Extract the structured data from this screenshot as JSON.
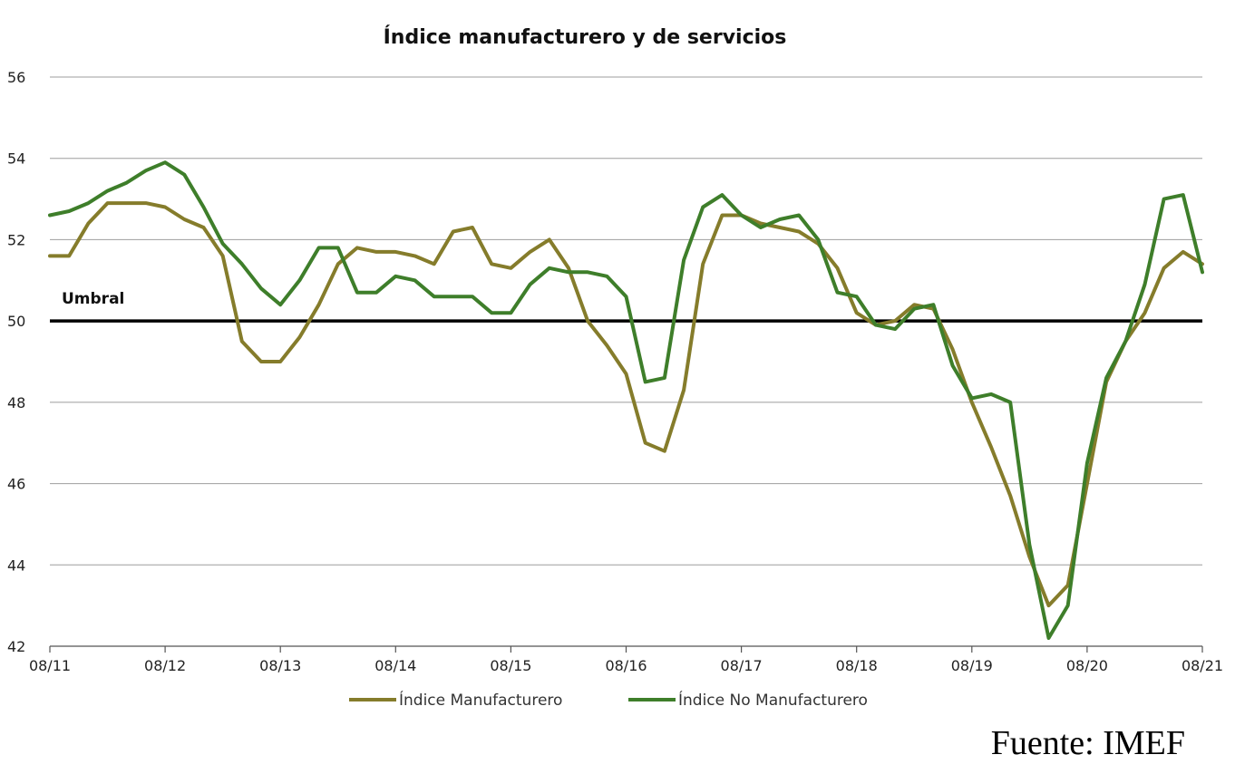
{
  "chart_data": {
    "type": "line",
    "title": "Índice manufacturero y de servicios",
    "ylim": [
      42,
      56
    ],
    "yticks": [
      42,
      44,
      46,
      48,
      50,
      52,
      54,
      56
    ],
    "xtick_labels": [
      "08/11",
      "08/12",
      "08/13",
      "08/14",
      "08/15",
      "08/16",
      "08/17",
      "08/18",
      "08/19",
      "08/20",
      "08/21"
    ],
    "grid": true,
    "legend_position": "bottom",
    "reference_line": {
      "value": 50,
      "label": "Umbral",
      "color": "#000000"
    },
    "series": [
      {
        "name": "Índice Manufacturero",
        "color": "#857C2B",
        "points": [
          [
            "08/11",
            51.6
          ],
          [
            "10/11",
            51.6
          ],
          [
            "12/11",
            52.4
          ],
          [
            "02/12",
            52.9
          ],
          [
            "04/12",
            52.9
          ],
          [
            "06/12",
            52.9
          ],
          [
            "08/12",
            52.8
          ],
          [
            "10/12",
            52.5
          ],
          [
            "12/12",
            52.3
          ],
          [
            "02/13",
            51.6
          ],
          [
            "04/13",
            49.5
          ],
          [
            "06/13",
            49.0
          ],
          [
            "08/13",
            49.0
          ],
          [
            "10/13",
            49.6
          ],
          [
            "12/13",
            50.4
          ],
          [
            "02/14",
            51.4
          ],
          [
            "04/14",
            51.8
          ],
          [
            "06/14",
            51.7
          ],
          [
            "08/14",
            51.7
          ],
          [
            "10/14",
            51.6
          ],
          [
            "12/14",
            51.4
          ],
          [
            "02/15",
            52.2
          ],
          [
            "04/15",
            52.3
          ],
          [
            "06/15",
            51.4
          ],
          [
            "08/15",
            51.3
          ],
          [
            "10/15",
            51.7
          ],
          [
            "12/15",
            52.0
          ],
          [
            "02/16",
            51.3
          ],
          [
            "04/16",
            50.0
          ],
          [
            "06/16",
            49.4
          ],
          [
            "08/16",
            48.7
          ],
          [
            "10/16",
            47.0
          ],
          [
            "12/16",
            46.8
          ],
          [
            "02/17",
            48.3
          ],
          [
            "04/17",
            51.4
          ],
          [
            "06/17",
            52.6
          ],
          [
            "08/17",
            52.6
          ],
          [
            "10/17",
            52.4
          ],
          [
            "12/17",
            52.3
          ],
          [
            "02/18",
            52.2
          ],
          [
            "04/18",
            51.9
          ],
          [
            "06/18",
            51.3
          ],
          [
            "08/18",
            50.2
          ],
          [
            "10/18",
            49.9
          ],
          [
            "12/18",
            50.0
          ],
          [
            "02/19",
            50.4
          ],
          [
            "04/19",
            50.3
          ],
          [
            "06/19",
            49.3
          ],
          [
            "08/19",
            48.0
          ],
          [
            "10/19",
            46.9
          ],
          [
            "12/19",
            45.7
          ],
          [
            "02/20",
            44.2
          ],
          [
            "04/20",
            43.0
          ],
          [
            "06/20",
            43.5
          ],
          [
            "08/20",
            46.0
          ],
          [
            "10/20",
            48.5
          ],
          [
            "12/20",
            49.5
          ],
          [
            "02/21",
            50.2
          ],
          [
            "04/21",
            51.3
          ],
          [
            "06/21",
            51.7
          ],
          [
            "08/21",
            51.4
          ]
        ]
      },
      {
        "name": "Índice No Manufacturero",
        "color": "#3E7E2A",
        "points": [
          [
            "08/11",
            52.6
          ],
          [
            "10/11",
            52.7
          ],
          [
            "12/11",
            52.9
          ],
          [
            "02/12",
            53.2
          ],
          [
            "04/12",
            53.4
          ],
          [
            "06/12",
            53.7
          ],
          [
            "08/12",
            53.9
          ],
          [
            "10/12",
            53.6
          ],
          [
            "12/12",
            52.8
          ],
          [
            "02/13",
            51.9
          ],
          [
            "04/13",
            51.4
          ],
          [
            "06/13",
            50.8
          ],
          [
            "08/13",
            50.4
          ],
          [
            "10/13",
            51.0
          ],
          [
            "12/13",
            51.8
          ],
          [
            "02/14",
            51.8
          ],
          [
            "04/14",
            50.7
          ],
          [
            "06/14",
            50.7
          ],
          [
            "08/14",
            51.1
          ],
          [
            "10/14",
            51.0
          ],
          [
            "12/14",
            50.6
          ],
          [
            "02/15",
            50.6
          ],
          [
            "04/15",
            50.6
          ],
          [
            "06/15",
            50.2
          ],
          [
            "08/15",
            50.2
          ],
          [
            "10/15",
            50.9
          ],
          [
            "12/15",
            51.3
          ],
          [
            "02/16",
            51.2
          ],
          [
            "04/16",
            51.2
          ],
          [
            "06/16",
            51.1
          ],
          [
            "08/16",
            50.6
          ],
          [
            "10/16",
            48.5
          ],
          [
            "12/16",
            48.6
          ],
          [
            "02/17",
            51.5
          ],
          [
            "04/17",
            52.8
          ],
          [
            "06/17",
            53.1
          ],
          [
            "08/17",
            52.6
          ],
          [
            "10/17",
            52.3
          ],
          [
            "12/17",
            52.5
          ],
          [
            "02/18",
            52.6
          ],
          [
            "04/18",
            52.0
          ],
          [
            "06/18",
            50.7
          ],
          [
            "08/18",
            50.6
          ],
          [
            "10/18",
            49.9
          ],
          [
            "12/18",
            49.8
          ],
          [
            "02/19",
            50.3
          ],
          [
            "04/19",
            50.4
          ],
          [
            "06/19",
            48.9
          ],
          [
            "08/19",
            48.1
          ],
          [
            "10/19",
            48.2
          ],
          [
            "12/19",
            48.0
          ],
          [
            "02/20",
            44.5
          ],
          [
            "04/20",
            42.2
          ],
          [
            "06/20",
            43.0
          ],
          [
            "08/20",
            46.5
          ],
          [
            "10/20",
            48.6
          ],
          [
            "12/20",
            49.5
          ],
          [
            "02/21",
            50.9
          ],
          [
            "04/21",
            53.0
          ],
          [
            "06/21",
            53.1
          ],
          [
            "08/21",
            51.2
          ]
        ]
      }
    ]
  },
  "source": "Fuente: IMEF"
}
